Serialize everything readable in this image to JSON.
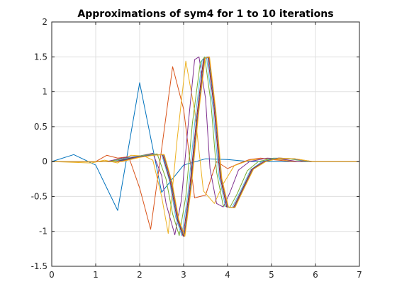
{
  "chart_data": {
    "type": "line",
    "title": "Approximations of sym4 for 1 to 10 iterations",
    "xlabel": "",
    "ylabel": "",
    "xlim": [
      0,
      7
    ],
    "ylim": [
      -1.5,
      2
    ],
    "xticks": [
      "0",
      "1",
      "2",
      "3",
      "4",
      "5",
      "6",
      "7"
    ],
    "yticks": [
      "2",
      "1.5",
      "1",
      "0.5",
      "0",
      "-0.5",
      "-1",
      "-1.5"
    ],
    "grid": true,
    "legend": "none",
    "series": [
      {
        "color": "#0072bd",
        "points": [
          [
            0,
            0
          ],
          [
            0.5,
            0.1
          ],
          [
            1,
            -0.05
          ],
          [
            1.5,
            -0.7
          ],
          [
            2,
            1.13
          ],
          [
            2.5,
            -0.44
          ],
          [
            3,
            -0.05
          ],
          [
            3.5,
            0.04
          ],
          [
            4,
            0.03
          ],
          [
            4.5,
            0
          ],
          [
            5,
            0
          ],
          [
            7,
            0
          ]
        ]
      },
      {
        "color": "#d95319",
        "points": [
          [
            0,
            0
          ],
          [
            0.75,
            0
          ],
          [
            1,
            0
          ],
          [
            1.25,
            0.09
          ],
          [
            1.5,
            0.05
          ],
          [
            1.75,
            0.07
          ],
          [
            2,
            -0.38
          ],
          [
            2.25,
            -0.97
          ],
          [
            2.5,
            0.18
          ],
          [
            2.75,
            1.36
          ],
          [
            3,
            0.75
          ],
          [
            3.25,
            -0.52
          ],
          [
            3.5,
            -0.48
          ],
          [
            3.75,
            0
          ],
          [
            4,
            -0.1
          ],
          [
            4.25,
            -0.03
          ],
          [
            4.5,
            0.03
          ],
          [
            4.75,
            0.05
          ],
          [
            5,
            0.03
          ],
          [
            5.5,
            0
          ],
          [
            7,
            0
          ]
        ]
      },
      {
        "color": "#edb120",
        "points": [
          [
            0,
            0
          ],
          [
            0.9,
            -0.02
          ],
          [
            1.2,
            0.02
          ],
          [
            1.5,
            -0.02
          ],
          [
            1.8,
            0.09
          ],
          [
            2.1,
            0.08
          ],
          [
            2.3,
            0.02
          ],
          [
            2.5,
            -0.5
          ],
          [
            2.65,
            -1.03
          ],
          [
            2.85,
            0.3
          ],
          [
            3.05,
            1.44
          ],
          [
            3.25,
            0.73
          ],
          [
            3.45,
            -0.42
          ],
          [
            3.7,
            -0.6
          ],
          [
            3.9,
            -0.32
          ],
          [
            4.15,
            -0.06
          ],
          [
            4.5,
            0.02
          ],
          [
            4.85,
            0.04
          ],
          [
            5.2,
            0.03
          ],
          [
            5.6,
            0
          ],
          [
            7,
            0
          ]
        ]
      },
      {
        "color": "#7e2f8e",
        "points": [
          [
            0,
            0
          ],
          [
            1.25,
            0
          ],
          [
            1.6,
            0.05
          ],
          [
            2,
            0.08
          ],
          [
            2.3,
            0.12
          ],
          [
            2.5,
            -0.2
          ],
          [
            2.6,
            -0.6
          ],
          [
            2.8,
            -1.05
          ],
          [
            2.95,
            -0.55
          ],
          [
            3.1,
            0.5
          ],
          [
            3.25,
            1.46
          ],
          [
            3.35,
            1.5
          ],
          [
            3.5,
            0.9
          ],
          [
            3.6,
            -0.1
          ],
          [
            3.75,
            -0.6
          ],
          [
            3.9,
            -0.65
          ],
          [
            4.05,
            -0.45
          ],
          [
            4.25,
            -0.12
          ],
          [
            4.5,
            0
          ],
          [
            4.9,
            0.05
          ],
          [
            5.2,
            0.04
          ],
          [
            5.6,
            0
          ],
          [
            7,
            0
          ]
        ]
      },
      {
        "color": "#77ac30",
        "points": [
          [
            0,
            0
          ],
          [
            1.3,
            0
          ],
          [
            1.7,
            0.05
          ],
          [
            2.1,
            0.09
          ],
          [
            2.4,
            0.11
          ],
          [
            2.6,
            -0.25
          ],
          [
            2.75,
            -0.75
          ],
          [
            2.9,
            -1.06
          ],
          [
            3.05,
            -0.5
          ],
          [
            3.2,
            0.55
          ],
          [
            3.38,
            1.42
          ],
          [
            3.48,
            1.5
          ],
          [
            3.62,
            0.85
          ],
          [
            3.75,
            -0.15
          ],
          [
            3.9,
            -0.63
          ],
          [
            4.05,
            -0.66
          ],
          [
            4.22,
            -0.46
          ],
          [
            4.45,
            -0.13
          ],
          [
            4.7,
            0
          ],
          [
            5.05,
            0.05
          ],
          [
            5.4,
            0.04
          ],
          [
            5.8,
            0
          ],
          [
            7,
            0
          ]
        ]
      },
      {
        "color": "#4dbeee",
        "points": [
          [
            0,
            0
          ],
          [
            1.4,
            0
          ],
          [
            1.8,
            0.06
          ],
          [
            2.2,
            0.09
          ],
          [
            2.5,
            0.1
          ],
          [
            2.68,
            -0.28
          ],
          [
            2.82,
            -0.8
          ],
          [
            2.96,
            -1.06
          ],
          [
            3.1,
            -0.45
          ],
          [
            3.26,
            0.6
          ],
          [
            3.42,
            1.45
          ],
          [
            3.52,
            1.5
          ],
          [
            3.66,
            0.8
          ],
          [
            3.8,
            -0.2
          ],
          [
            3.95,
            -0.64
          ],
          [
            4.1,
            -0.66
          ],
          [
            4.28,
            -0.44
          ],
          [
            4.52,
            -0.12
          ],
          [
            4.78,
            0
          ],
          [
            5.1,
            0.05
          ],
          [
            5.45,
            0.04
          ],
          [
            5.85,
            0
          ],
          [
            7,
            0
          ]
        ]
      },
      {
        "color": "#a2142f",
        "points": [
          [
            0,
            0
          ],
          [
            1.45,
            0
          ],
          [
            1.85,
            0.06
          ],
          [
            2.25,
            0.09
          ],
          [
            2.52,
            0.1
          ],
          [
            2.7,
            -0.3
          ],
          [
            2.85,
            -0.82
          ],
          [
            2.99,
            -1.07
          ],
          [
            3.13,
            -0.42
          ],
          [
            3.3,
            0.65
          ],
          [
            3.45,
            1.46
          ],
          [
            3.55,
            1.5
          ],
          [
            3.69,
            0.78
          ],
          [
            3.83,
            -0.22
          ],
          [
            3.98,
            -0.65
          ],
          [
            4.13,
            -0.66
          ],
          [
            4.31,
            -0.43
          ],
          [
            4.55,
            -0.11
          ],
          [
            4.82,
            0
          ],
          [
            5.15,
            0.05
          ],
          [
            5.5,
            0.04
          ],
          [
            5.9,
            0
          ],
          [
            7,
            0
          ]
        ]
      },
      {
        "color": "#0072bd",
        "points": [
          [
            0,
            0
          ],
          [
            1.5,
            0
          ],
          [
            1.9,
            0.06
          ],
          [
            2.28,
            0.09
          ],
          [
            2.54,
            0.1
          ],
          [
            2.72,
            -0.3
          ],
          [
            2.87,
            -0.83
          ],
          [
            3.01,
            -1.07
          ],
          [
            3.15,
            -0.4
          ],
          [
            3.32,
            0.67
          ],
          [
            3.47,
            1.47
          ],
          [
            3.57,
            1.5
          ],
          [
            3.71,
            0.76
          ],
          [
            3.85,
            -0.23
          ],
          [
            4,
            -0.65
          ],
          [
            4.15,
            -0.66
          ],
          [
            4.33,
            -0.42
          ],
          [
            4.57,
            -0.11
          ],
          [
            4.85,
            0
          ],
          [
            5.17,
            0.05
          ],
          [
            5.52,
            0.04
          ],
          [
            5.92,
            0
          ],
          [
            7,
            0
          ]
        ]
      },
      {
        "color": "#d95319",
        "points": [
          [
            0,
            0
          ],
          [
            1.55,
            0
          ],
          [
            1.95,
            0.06
          ],
          [
            2.3,
            0.09
          ],
          [
            2.55,
            0.1
          ],
          [
            2.73,
            -0.3
          ],
          [
            2.88,
            -0.83
          ],
          [
            3.02,
            -1.07
          ],
          [
            3.16,
            -0.4
          ],
          [
            3.33,
            0.68
          ],
          [
            3.48,
            1.48
          ],
          [
            3.58,
            1.5
          ],
          [
            3.72,
            0.75
          ],
          [
            3.86,
            -0.24
          ],
          [
            4.01,
            -0.65
          ],
          [
            4.16,
            -0.66
          ],
          [
            4.34,
            -0.42
          ],
          [
            4.58,
            -0.11
          ],
          [
            4.86,
            0
          ],
          [
            5.18,
            0.05
          ],
          [
            5.53,
            0.04
          ],
          [
            5.93,
            0
          ],
          [
            7,
            0
          ]
        ]
      },
      {
        "color": "#edb120",
        "points": [
          [
            0,
            0
          ],
          [
            1.6,
            0
          ],
          [
            2,
            0.06
          ],
          [
            2.31,
            0.09
          ],
          [
            2.56,
            0.1
          ],
          [
            2.74,
            -0.3
          ],
          [
            2.89,
            -0.83
          ],
          [
            3.03,
            -1.07
          ],
          [
            3.17,
            -0.4
          ],
          [
            3.34,
            0.68
          ],
          [
            3.49,
            1.48
          ],
          [
            3.59,
            1.5
          ],
          [
            3.73,
            0.75
          ],
          [
            3.87,
            -0.24
          ],
          [
            4.02,
            -0.65
          ],
          [
            4.17,
            -0.66
          ],
          [
            4.35,
            -0.42
          ],
          [
            4.59,
            -0.11
          ],
          [
            4.87,
            0
          ],
          [
            5.19,
            0.05
          ],
          [
            5.54,
            0.04
          ],
          [
            5.94,
            0
          ],
          [
            7,
            0
          ]
        ]
      }
    ]
  }
}
